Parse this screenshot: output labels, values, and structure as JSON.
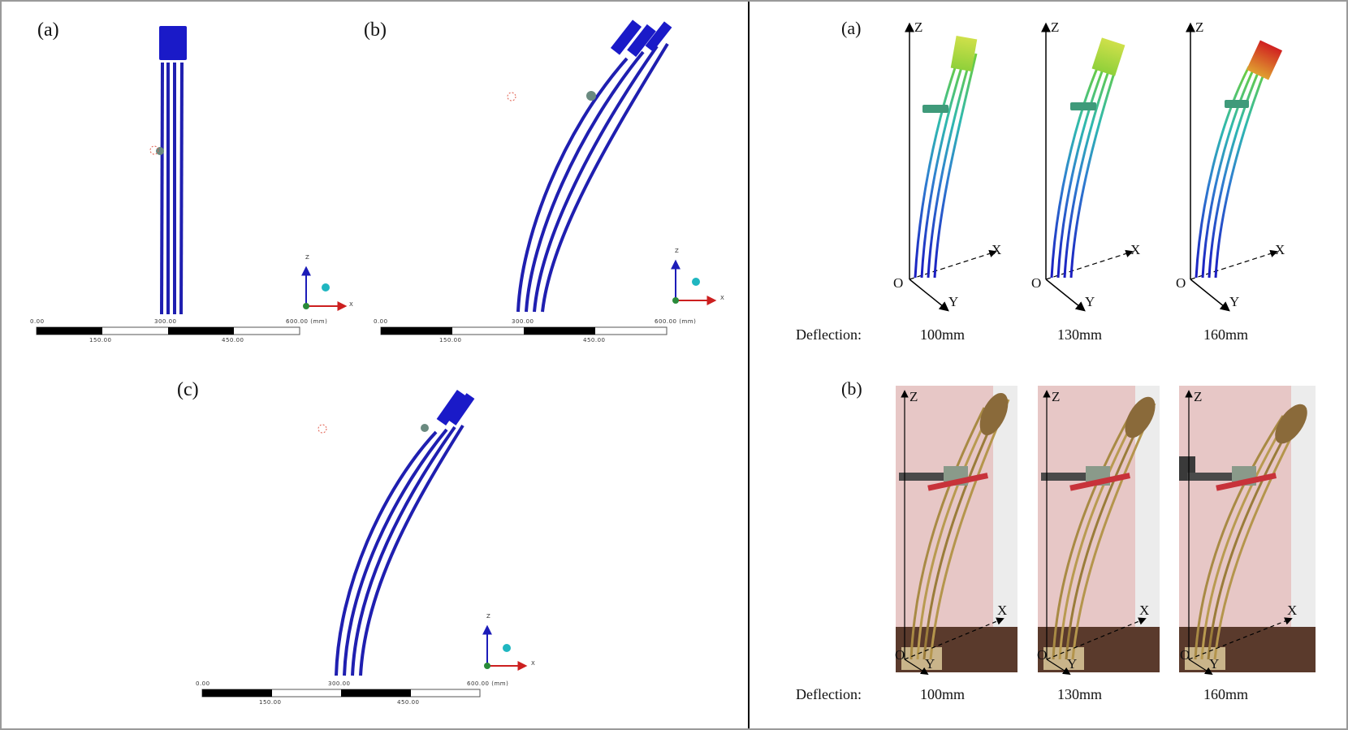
{
  "left": {
    "labels": [
      "(a)",
      "(b)",
      "(c)"
    ],
    "scale_bar": {
      "ticks": [
        "0.00",
        "300.00",
        "600.00 (mm)"
      ],
      "sub_ticks": [
        "150.00",
        "450.00"
      ]
    },
    "triad": {
      "z": "Z",
      "x": "X"
    }
  },
  "right": {
    "labels": [
      "(a)",
      "(b)"
    ],
    "axes": {
      "z": "Z",
      "x": "X",
      "y": "Y",
      "o": "O"
    },
    "deflection_label": "Deflection:",
    "deflections": [
      "100mm",
      "130mm",
      "160mm"
    ]
  },
  "colors": {
    "stalk_blue": "#1f1fb0",
    "head_blue": "#1a1ac8",
    "grip_green": "#4a7f73",
    "arrow_red": "#cc1f1f"
  }
}
